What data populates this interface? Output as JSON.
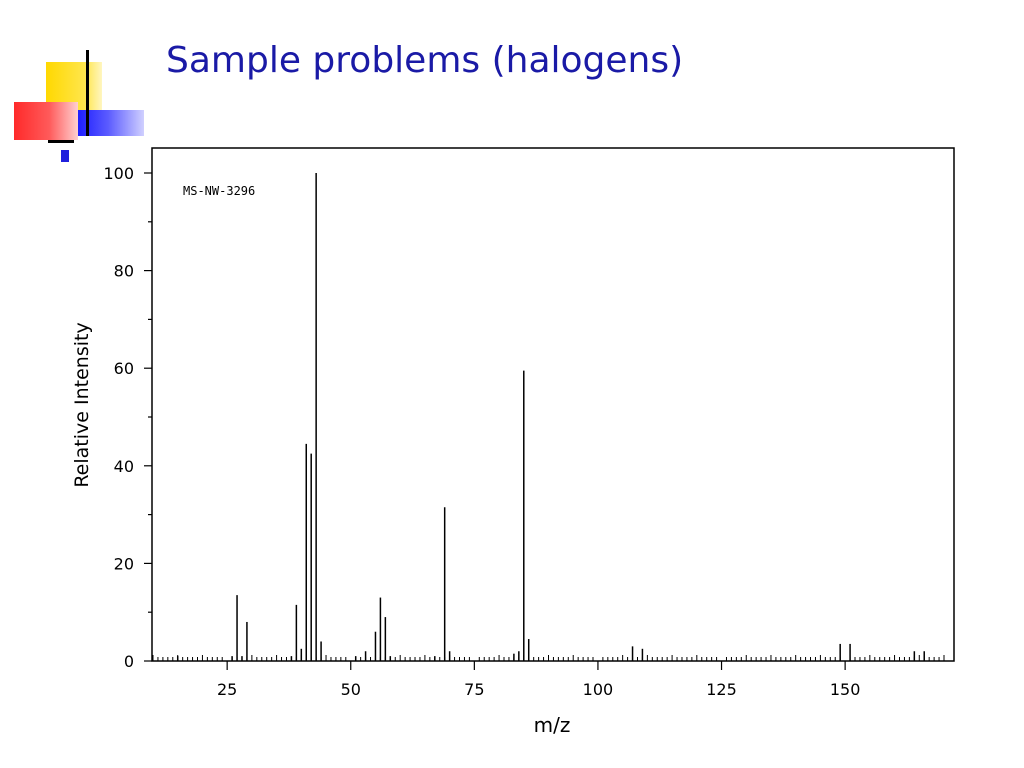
{
  "slide": {
    "title": "Sample problems (halogens)"
  },
  "colors": {
    "title": "#1a1aa6",
    "axis": "#000000",
    "deco_yellow": "#ffd800",
    "deco_red": "#ff2a2a",
    "deco_blue": "#1e1eff"
  },
  "chart_data": {
    "type": "bar",
    "subtype": "mass-spectrum stick plot",
    "annotation": "MS-NW-3296",
    "xlabel": "m/z",
    "ylabel": "Relative Intensity",
    "xlim": [
      10,
      170
    ],
    "ylim": [
      0,
      105
    ],
    "xticks": [
      25,
      50,
      75,
      100,
      125,
      150
    ],
    "yticks": [
      0,
      20,
      40,
      60,
      80,
      100
    ],
    "grid": false,
    "legend": "none",
    "peaks": [
      {
        "x": 15,
        "y": 1
      },
      {
        "x": 26,
        "y": 1
      },
      {
        "x": 27,
        "y": 13.5
      },
      {
        "x": 28,
        "y": 1
      },
      {
        "x": 29,
        "y": 8
      },
      {
        "x": 38,
        "y": 1
      },
      {
        "x": 39,
        "y": 11.5
      },
      {
        "x": 40,
        "y": 2.5
      },
      {
        "x": 41,
        "y": 44.5
      },
      {
        "x": 42,
        "y": 42.5
      },
      {
        "x": 43,
        "y": 100
      },
      {
        "x": 44,
        "y": 4
      },
      {
        "x": 51,
        "y": 1
      },
      {
        "x": 53,
        "y": 2
      },
      {
        "x": 55,
        "y": 6
      },
      {
        "x": 56,
        "y": 13
      },
      {
        "x": 57,
        "y": 9
      },
      {
        "x": 58,
        "y": 1
      },
      {
        "x": 67,
        "y": 1
      },
      {
        "x": 69,
        "y": 31.5
      },
      {
        "x": 70,
        "y": 2
      },
      {
        "x": 83,
        "y": 1.5
      },
      {
        "x": 84,
        "y": 2
      },
      {
        "x": 85,
        "y": 59.5
      },
      {
        "x": 86,
        "y": 4.5
      },
      {
        "x": 107,
        "y": 3
      },
      {
        "x": 109,
        "y": 2.5
      },
      {
        "x": 149,
        "y": 3.5
      },
      {
        "x": 151,
        "y": 3.5
      },
      {
        "x": 164,
        "y": 2
      },
      {
        "x": 166,
        "y": 2
      }
    ]
  }
}
